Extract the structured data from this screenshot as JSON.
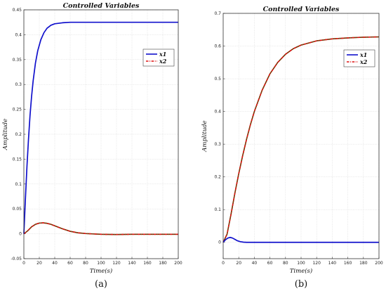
{
  "chart_data": [
    {
      "type": "line",
      "caption": "(a)",
      "title": "Controlled    Variables",
      "xlabel": "Time(s)",
      "ylabel": "Amplitude",
      "xlim": [
        0,
        200
      ],
      "ylim": [
        -0.05,
        0.45
      ],
      "xticks": [
        0,
        20,
        40,
        60,
        80,
        100,
        120,
        140,
        160,
        180,
        200
      ],
      "yticks": [
        -0.05,
        0,
        0.05,
        0.1,
        0.15,
        0.2,
        0.25,
        0.3,
        0.35,
        0.4,
        0.45
      ],
      "ytick_labels": [
        "-0.05",
        "0",
        "0.05",
        "0.1",
        "0.15",
        "0.2",
        "0.25",
        "0.3",
        "0.35",
        "0.4",
        "0.45"
      ],
      "grid": true,
      "legend": "top-right",
      "series": [
        {
          "name": "x1",
          "color": "#1010cc",
          "style": "solid",
          "x": [
            0,
            2,
            4,
            6,
            8,
            10,
            12,
            15,
            18,
            22,
            26,
            30,
            35,
            40,
            50,
            60,
            80,
            100,
            120,
            140,
            160,
            180,
            200
          ],
          "y": [
            0,
            0.07,
            0.135,
            0.19,
            0.238,
            0.276,
            0.307,
            0.343,
            0.368,
            0.39,
            0.404,
            0.413,
            0.419,
            0.422,
            0.424,
            0.425,
            0.425,
            0.425,
            0.425,
            0.425,
            0.425,
            0.425,
            0.425
          ]
        },
        {
          "name": "x2",
          "color": "#dd1111",
          "style": "dash-dot",
          "x": [
            0,
            5,
            10,
            15,
            20,
            25,
            30,
            35,
            40,
            50,
            60,
            70,
            80,
            100,
            120,
            140,
            160,
            180,
            200
          ],
          "y": [
            0,
            0.006,
            0.014,
            0.019,
            0.0215,
            0.022,
            0.021,
            0.019,
            0.016,
            0.01,
            0.005,
            0.002,
            0.0005,
            -0.001,
            -0.0015,
            -0.001,
            -0.001,
            -0.001,
            -0.001
          ]
        }
      ]
    },
    {
      "type": "line",
      "caption": "(b)",
      "title": "Controlled    Variables",
      "xlabel": "Time(s)",
      "ylabel": "Amplitude",
      "xlim": [
        0,
        200
      ],
      "ylim": [
        -0.05,
        0.7
      ],
      "xticks": [
        0,
        20,
        40,
        60,
        80,
        100,
        120,
        140,
        160,
        180,
        200
      ],
      "yticks": [
        0,
        0.1,
        0.2,
        0.3,
        0.4,
        0.5,
        0.6,
        0.7
      ],
      "ytick_labels": [
        "0",
        "0.1",
        "0.2",
        "0.3",
        "0.4",
        "0.5",
        "0.6",
        "0.7"
      ],
      "grid": true,
      "legend": "top-right",
      "series": [
        {
          "name": "x1",
          "color": "#1010cc",
          "style": "solid",
          "x": [
            0,
            3,
            6,
            9,
            12,
            15,
            18,
            22,
            26,
            30,
            35,
            40,
            60,
            80,
            100,
            120,
            140,
            160,
            180,
            200
          ],
          "y": [
            0,
            0.008,
            0.013,
            0.015,
            0.013,
            0.009,
            0.005,
            0.002,
            0.0005,
            0,
            0,
            0,
            0,
            0,
            0,
            0,
            0,
            0,
            0,
            0
          ]
        },
        {
          "name": "x2",
          "color": "#dd1111",
          "style": "dash-dot",
          "x": [
            0,
            5,
            10,
            15,
            20,
            25,
            30,
            35,
            40,
            50,
            60,
            70,
            80,
            90,
            100,
            120,
            140,
            160,
            180,
            200
          ],
          "y": [
            0,
            0.025,
            0.085,
            0.15,
            0.21,
            0.265,
            0.315,
            0.36,
            0.4,
            0.465,
            0.515,
            0.55,
            0.575,
            0.592,
            0.603,
            0.616,
            0.622,
            0.625,
            0.627,
            0.628
          ]
        }
      ]
    }
  ]
}
